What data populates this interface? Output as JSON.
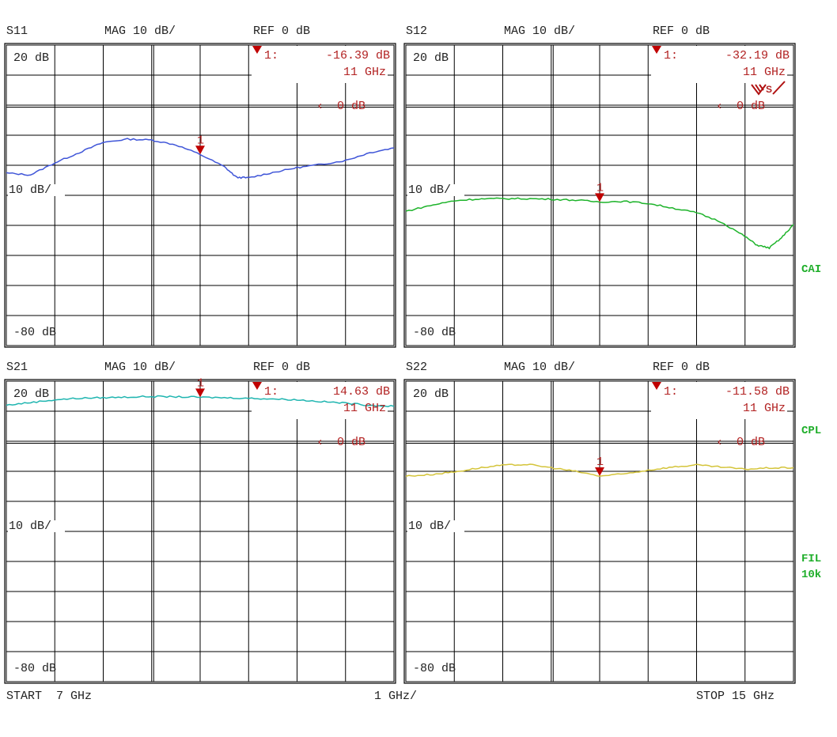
{
  "footer": {
    "start": "START  7 GHz",
    "per_div": "1 GHz/",
    "stop": "STOP 15 GHz"
  },
  "side_labels": {
    "cal": "CAI",
    "cpl": "CPL",
    "fil": "FIL",
    "ifbw": "10k"
  },
  "logo_text": "VS",
  "colors": {
    "grid": "#000000",
    "marker": "#b01010",
    "side": "#1fae2a"
  },
  "chart_data": [
    {
      "type": "line",
      "title": "S11",
      "format": "MAG 10 dB/",
      "ref": "REF 0 dB",
      "top_label": "20 dB",
      "scale_label": "10 dB/",
      "bottom_label": "-80 dB",
      "ref_marker": "0 dB",
      "ylim": [
        -80,
        20
      ],
      "xlim": [
        7,
        15
      ],
      "grid": true,
      "color": "#3f55d8",
      "x": [
        7,
        7.5,
        8,
        8.5,
        9,
        9.5,
        10,
        10.5,
        11,
        11.5,
        11.75,
        12,
        12.5,
        13,
        13.5,
        14,
        14.5,
        15
      ],
      "values": [
        -22.6,
        -23.2,
        -19.2,
        -15.8,
        -12.4,
        -11.3,
        -11.6,
        -13.2,
        -16.39,
        -20.5,
        -24,
        -24.2,
        -22.4,
        -20.8,
        -19.7,
        -18.4,
        -15.8,
        -14.2
      ],
      "marker": {
        "label": "1",
        "readout": "1:",
        "value": "-16.39 dB",
        "freq": "11 GHz",
        "x": 11,
        "y": -16.39
      }
    },
    {
      "type": "line",
      "title": "S12",
      "format": "MAG 10 dB/",
      "ref": "REF 0 dB",
      "top_label": "20 dB",
      "scale_label": "10 dB/",
      "bottom_label": "-80 dB",
      "ref_marker": "0 dB",
      "ylim": [
        -80,
        20
      ],
      "xlim": [
        7,
        15
      ],
      "grid": true,
      "color": "#1db32a",
      "x": [
        7,
        7.5,
        8,
        8.5,
        9,
        9.5,
        10,
        10.5,
        11,
        11.5,
        12,
        12.5,
        13,
        13.5,
        14,
        14.25,
        14.5,
        14.75,
        15
      ],
      "values": [
        -35.3,
        -33.4,
        -31.8,
        -31.2,
        -31.1,
        -31.1,
        -31.3,
        -31.6,
        -32.19,
        -32,
        -32.7,
        -34.2,
        -35.8,
        -38.8,
        -43.7,
        -46.6,
        -47.5,
        -44.2,
        -39.7
      ],
      "marker": {
        "label": "1",
        "readout": "1:",
        "value": "-32.19 dB",
        "freq": "11 GHz",
        "x": 11,
        "y": -32.19
      }
    },
    {
      "type": "line",
      "title": "S21",
      "format": "MAG 10 dB/",
      "ref": "REF 0 dB",
      "top_label": "20 dB",
      "scale_label": "10 dB/",
      "bottom_label": "-80 dB",
      "ref_marker": "0 dB",
      "ylim": [
        -80,
        20
      ],
      "xlim": [
        7,
        15
      ],
      "grid": true,
      "color": "#1fb5b0",
      "x": [
        7,
        7.5,
        8,
        8.5,
        9,
        9.5,
        10,
        10.5,
        11,
        11.5,
        12,
        12.5,
        13,
        13.5,
        14,
        14.5,
        15
      ],
      "values": [
        12.0,
        12.9,
        13.8,
        14.3,
        14.5,
        14.7,
        14.9,
        14.8,
        14.63,
        14.5,
        14.3,
        14.1,
        13.8,
        13.2,
        12.7,
        12.0,
        11.6
      ],
      "marker": {
        "label": "1",
        "readout": "1:",
        "value": "14.63 dB",
        "freq": "11 GHz",
        "x": 11,
        "y": 14.63
      }
    },
    {
      "type": "line",
      "title": "S22",
      "format": "MAG 10 dB/",
      "ref": "REF 0 dB",
      "top_label": "20 dB",
      "scale_label": "10 dB/",
      "bottom_label": "-80 dB",
      "ref_marker": "0 dB",
      "ylim": [
        -80,
        20
      ],
      "xlim": [
        7,
        15
      ],
      "grid": true,
      "color": "#d4c43a",
      "x": [
        7,
        7.5,
        8,
        8.5,
        9,
        9.5,
        10,
        10.5,
        11,
        11.5,
        12,
        12.5,
        13,
        13.5,
        14,
        14.5,
        15
      ],
      "values": [
        -11.6,
        -11.1,
        -10.2,
        -8.9,
        -8.0,
        -7.7,
        -8.8,
        -10,
        -11.58,
        -10.9,
        -9.6,
        -8.6,
        -7.9,
        -8.6,
        -9.3,
        -8.9,
        -8.8
      ],
      "marker": {
        "label": "1",
        "readout": "1:",
        "value": "-11.58 dB",
        "freq": "11 GHz",
        "x": 11,
        "y": -11.58
      }
    }
  ]
}
